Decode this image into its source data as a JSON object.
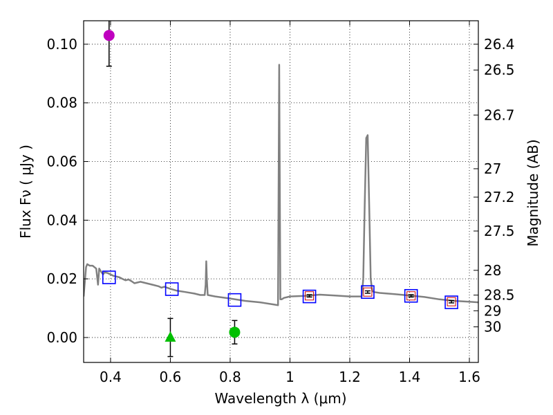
{
  "chart_data": {
    "type": "scatter",
    "xlabel": "Wavelength  λ (μm)",
    "ylabel": "Flux  Fν  ( μJy )",
    "ylabel_right": "Magnitude (AB)",
    "xlim": [
      0.31,
      1.63
    ],
    "ylim": [
      -0.0085,
      0.108
    ],
    "grid": true,
    "x_ticks": [
      0.4,
      0.6,
      0.8,
      1.0,
      1.2,
      1.4,
      1.6
    ],
    "x_tick_labels": [
      "0.4",
      "0.6",
      "0.8",
      "1",
      "1.2",
      "1.4",
      "1.6"
    ],
    "y_ticks": [
      0.0,
      0.02,
      0.04,
      0.06,
      0.08,
      0.1
    ],
    "y_tick_labels": [
      "0.00",
      "0.02",
      "0.04",
      "0.06",
      "0.08",
      "0.10"
    ],
    "mag_ticks": [
      26.4,
      26.5,
      26.7,
      27,
      27.2,
      27.5,
      28,
      28.5,
      29,
      30
    ],
    "mag_tick_labels": [
      "26.4",
      "26.5",
      "26.7",
      "27",
      "27.2",
      "27.5",
      "28",
      "28.5",
      "29",
      "30"
    ],
    "colors": {
      "model": "#808080",
      "model_phot": "#0000ff",
      "obs_square": "#cc0000",
      "magenta": "#bf00bf",
      "green": "#00bf00",
      "errorbar": "#000000"
    },
    "model_spectrum": {
      "name": "SED model",
      "x": [
        0.31,
        0.318,
        0.322,
        0.33,
        0.34,
        0.352,
        0.358,
        0.362,
        0.368,
        0.375,
        0.38,
        0.39,
        0.41,
        0.42,
        0.43,
        0.44,
        0.45,
        0.46,
        0.47,
        0.48,
        0.5,
        0.52,
        0.54,
        0.56,
        0.57,
        0.58,
        0.6,
        0.62,
        0.65,
        0.68,
        0.7,
        0.715,
        0.718,
        0.72,
        0.722,
        0.725,
        0.75,
        0.8,
        0.85,
        0.9,
        0.95,
        0.96,
        0.962,
        0.964,
        0.966,
        0.968,
        0.972,
        0.98,
        1.0,
        1.05,
        1.1,
        1.15,
        1.2,
        1.24,
        1.245,
        1.25,
        1.255,
        1.26,
        1.265,
        1.27,
        1.275,
        1.28,
        1.3,
        1.35,
        1.4,
        1.45,
        1.5,
        1.55,
        1.6,
        1.63
      ],
      "y": [
        0.014,
        0.024,
        0.025,
        0.0245,
        0.0245,
        0.0235,
        0.018,
        0.0235,
        0.0225,
        0.0215,
        0.0222,
        0.022,
        0.021,
        0.0208,
        0.0205,
        0.02,
        0.0195,
        0.0198,
        0.0192,
        0.0185,
        0.019,
        0.0185,
        0.018,
        0.0175,
        0.017,
        0.0173,
        0.0166,
        0.016,
        0.0155,
        0.015,
        0.0145,
        0.0145,
        0.018,
        0.026,
        0.02,
        0.0145,
        0.014,
        0.0133,
        0.0125,
        0.012,
        0.0112,
        0.011,
        0.05,
        0.093,
        0.05,
        0.013,
        0.013,
        0.0135,
        0.014,
        0.0142,
        0.0146,
        0.0143,
        0.014,
        0.014,
        0.02,
        0.045,
        0.068,
        0.069,
        0.045,
        0.02,
        0.016,
        0.0155,
        0.0152,
        0.0148,
        0.0143,
        0.0138,
        0.013,
        0.0125,
        0.0122,
        0.012
      ]
    },
    "series": [
      {
        "name": "model photometry",
        "marker": "square-open",
        "x": [
          0.395,
          0.605,
          0.815,
          1.065,
          1.26,
          1.405,
          1.54
        ],
        "y": [
          0.0205,
          0.0165,
          0.0128,
          0.014,
          0.0155,
          0.0142,
          0.012
        ]
      },
      {
        "name": "observed (square)",
        "marker": "square-small",
        "x": [
          1.065,
          1.26,
          1.405,
          1.54
        ],
        "y": [
          0.0142,
          0.0155,
          0.0142,
          0.0122
        ],
        "yerr": [
          0.0004,
          0.0004,
          0.0004,
          0.0004
        ]
      },
      {
        "name": "observed (magenta)",
        "marker": "circle",
        "x": [
          0.395
        ],
        "y": [
          0.103
        ],
        "yerr": [
          0.0105
        ]
      },
      {
        "name": "observed (green circle)",
        "marker": "circle",
        "x": [
          0.815
        ],
        "y": [
          0.0018
        ],
        "yerr": [
          0.004
        ]
      },
      {
        "name": "observed (green triangle)",
        "marker": "triangle",
        "x": [
          0.6
        ],
        "y": [
          0.0
        ],
        "yerr": [
          0.0065
        ]
      }
    ]
  }
}
